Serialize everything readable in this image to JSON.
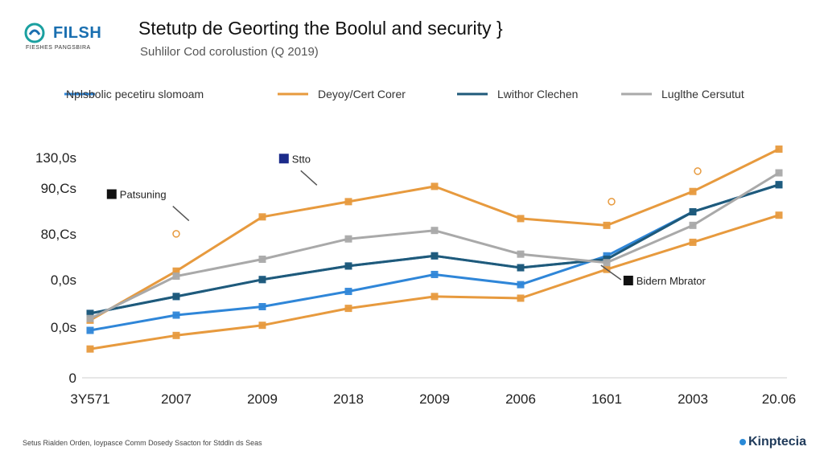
{
  "header": {
    "logo_text": "FILSH",
    "logo_sub": "FIESHES PANGSBIRA",
    "title": "Stetutp de Georting the Boolul and security }",
    "subtitle": "Suhlilor Cod corolustion (Q 2019)"
  },
  "footer": {
    "note": "Setus Rialden Orden, Ioypasce Comm Dosedy Ssacton for Stddln ds Seas",
    "brand": "Kinptecia"
  },
  "colors": {
    "blue": "#2f86d8",
    "orange": "#e79a3e",
    "navy": "#1f5a7a",
    "gray": "#a9a9a9"
  },
  "chart_data": {
    "type": "line",
    "title": "Stetutp de Georting the Boolul and security }",
    "xlabel": "",
    "ylabel": "",
    "categories": [
      "3Y571",
      "2007",
      "2009",
      "2018",
      "2009",
      "2006",
      "1601",
      "2003",
      "20.06"
    ],
    "ylim": [
      0,
      140
    ],
    "yticks": [
      {
        "value": 0,
        "label": "0"
      },
      {
        "value": 30,
        "label": "0,0s"
      },
      {
        "value": 58,
        "label": "0,0s"
      },
      {
        "value": 85,
        "label": "80,Cs"
      },
      {
        "value": 112,
        "label": "90,Cs"
      },
      {
        "value": 130,
        "label": "130,0s"
      }
    ],
    "legend": [
      {
        "name": "Nplsbolic pecetiru slomoam",
        "color": "#2f86d8"
      },
      {
        "name": "Deyoy/Cert Corer",
        "color": "#e79a3e"
      },
      {
        "name": "Lwithor Clechen",
        "color": "#1f5a7a"
      },
      {
        "name": "Luglthe Cersutut",
        "color": "#a9a9a9"
      }
    ],
    "series": [
      {
        "name": "Blue upper",
        "color": "#2f86d8",
        "values": [
          38,
          48,
          58,
          66,
          72,
          65,
          70,
          98,
          114
        ]
      },
      {
        "name": "Blue lower",
        "color": "#2f86d8",
        "values": [
          28,
          37,
          42,
          51,
          61,
          55,
          72,
          98,
          114
        ]
      },
      {
        "name": "Orange upper",
        "color": "#e79a3e",
        "values": [
          34,
          63,
          95,
          104,
          113,
          94,
          90,
          110,
          135
        ]
      },
      {
        "name": "Orange lower",
        "color": "#e79a3e",
        "values": [
          17,
          25,
          31,
          41,
          48,
          47,
          64,
          80,
          96
        ]
      },
      {
        "name": "Navy",
        "color": "#1f5a7a",
        "values": [
          38,
          48,
          58,
          66,
          72,
          65,
          70,
          98,
          114
        ]
      },
      {
        "name": "Gray",
        "color": "#a9a9a9",
        "values": [
          35,
          60,
          70,
          82,
          87,
          73,
          68,
          90,
          121
        ]
      }
    ],
    "annotations": [
      {
        "text": "Stto",
        "x_index": 2.4,
        "y": 128
      },
      {
        "text": "Patsuning",
        "x_index": 0.4,
        "y": 107
      },
      {
        "text": "Bidern Mbrator",
        "x_index": 6.4,
        "y": 56
      }
    ],
    "grid": true
  }
}
